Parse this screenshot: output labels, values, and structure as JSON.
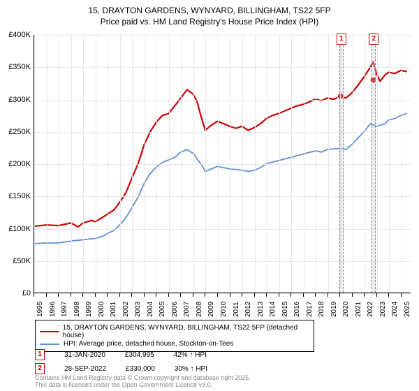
{
  "title": {
    "line1": "15, DRAYTON GARDENS, WYNYARD, BILLINGHAM, TS22 5FP",
    "line2": "Price paid vs. HM Land Registry's House Price Index (HPI)"
  },
  "chart": {
    "type": "line",
    "background_color": "#ffffff",
    "grid_color": "#e6e6e6",
    "axis_color": "#000000",
    "x_range": [
      1995,
      2025.8
    ],
    "y_range": [
      0,
      400000
    ],
    "y_ticks": [
      0,
      50000,
      100000,
      150000,
      200000,
      250000,
      300000,
      350000,
      400000
    ],
    "y_tick_labels": [
      "£0",
      "£50K",
      "£100K",
      "£150K",
      "£200K",
      "£250K",
      "£300K",
      "£350K",
      "£400K"
    ],
    "x_ticks": [
      1995,
      1996,
      1997,
      1998,
      1999,
      2000,
      2001,
      2002,
      2003,
      2004,
      2005,
      2006,
      2007,
      2008,
      2009,
      2010,
      2011,
      2012,
      2013,
      2014,
      2015,
      2016,
      2017,
      2018,
      2019,
      2020,
      2021,
      2022,
      2023,
      2024,
      2025
    ],
    "series": [
      {
        "id": "property",
        "label": "15, DRAYTON GARDENS, WYNYARD, BILLINGHAM, TS22 5FP (detached house)",
        "color": "#cc0000",
        "line_width": 2.2,
        "data": [
          [
            1995,
            103000
          ],
          [
            1996,
            105000
          ],
          [
            1997,
            104000
          ],
          [
            1998,
            108000
          ],
          [
            1998.6,
            102000
          ],
          [
            1999,
            108000
          ],
          [
            1999.7,
            112000
          ],
          [
            2000,
            110000
          ],
          [
            2000.7,
            118000
          ],
          [
            2001,
            122000
          ],
          [
            2001.5,
            128000
          ],
          [
            2002,
            140000
          ],
          [
            2002.5,
            155000
          ],
          [
            2003,
            178000
          ],
          [
            2003.5,
            200000
          ],
          [
            2004,
            230000
          ],
          [
            2004.5,
            250000
          ],
          [
            2005,
            265000
          ],
          [
            2005.5,
            275000
          ],
          [
            2006,
            278000
          ],
          [
            2006.5,
            290000
          ],
          [
            2007,
            302000
          ],
          [
            2007.5,
            315000
          ],
          [
            2008,
            308000
          ],
          [
            2008.3,
            298000
          ],
          [
            2008.7,
            270000
          ],
          [
            2009,
            252000
          ],
          [
            2009.5,
            260000
          ],
          [
            2010,
            266000
          ],
          [
            2010.5,
            262000
          ],
          [
            2011,
            258000
          ],
          [
            2011.5,
            255000
          ],
          [
            2012,
            258000
          ],
          [
            2012.5,
            252000
          ],
          [
            2013,
            256000
          ],
          [
            2013.5,
            262000
          ],
          [
            2014,
            270000
          ],
          [
            2014.5,
            275000
          ],
          [
            2015,
            278000
          ],
          [
            2015.5,
            282000
          ],
          [
            2016,
            286000
          ],
          [
            2016.5,
            290000
          ],
          [
            2017,
            292000
          ],
          [
            2017.5,
            296000
          ],
          [
            2018,
            300000
          ],
          [
            2018.5,
            298000
          ],
          [
            2019,
            302000
          ],
          [
            2019.5,
            300000
          ],
          [
            2020,
            304000
          ],
          [
            2020.5,
            302000
          ],
          [
            2021,
            310000
          ],
          [
            2021.5,
            322000
          ],
          [
            2022,
            335000
          ],
          [
            2022.5,
            350000
          ],
          [
            2022.75,
            358000
          ],
          [
            2023,
            340000
          ],
          [
            2023.3,
            328000
          ],
          [
            2023.7,
            338000
          ],
          [
            2024,
            342000
          ],
          [
            2024.5,
            340000
          ],
          [
            2025,
            345000
          ],
          [
            2025.5,
            343000
          ]
        ]
      },
      {
        "id": "hpi",
        "label": "HPI: Average price, detached house, Stockton-on-Tees",
        "color": "#5b8fd6",
        "line_width": 1.8,
        "data": [
          [
            1995,
            76000
          ],
          [
            1996,
            77000
          ],
          [
            1997,
            77000
          ],
          [
            1998,
            80000
          ],
          [
            1999,
            82000
          ],
          [
            2000,
            84000
          ],
          [
            2000.7,
            88000
          ],
          [
            2001,
            92000
          ],
          [
            2001.5,
            96000
          ],
          [
            2002,
            105000
          ],
          [
            2002.5,
            116000
          ],
          [
            2003,
            132000
          ],
          [
            2003.5,
            148000
          ],
          [
            2004,
            170000
          ],
          [
            2004.5,
            185000
          ],
          [
            2005,
            195000
          ],
          [
            2005.5,
            202000
          ],
          [
            2006,
            206000
          ],
          [
            2006.5,
            210000
          ],
          [
            2007,
            218000
          ],
          [
            2007.5,
            222000
          ],
          [
            2008,
            216000
          ],
          [
            2008.7,
            198000
          ],
          [
            2009,
            188000
          ],
          [
            2009.5,
            192000
          ],
          [
            2010,
            196000
          ],
          [
            2010.5,
            194000
          ],
          [
            2011,
            192000
          ],
          [
            2012,
            190000
          ],
          [
            2012.5,
            188000
          ],
          [
            2013,
            190000
          ],
          [
            2013.5,
            194000
          ],
          [
            2014,
            200000
          ],
          [
            2015,
            205000
          ],
          [
            2016,
            210000
          ],
          [
            2017,
            215000
          ],
          [
            2018,
            220000
          ],
          [
            2018.5,
            218000
          ],
          [
            2019,
            222000
          ],
          [
            2020,
            224000
          ],
          [
            2020.5,
            222000
          ],
          [
            2021,
            230000
          ],
          [
            2021.5,
            240000
          ],
          [
            2022,
            250000
          ],
          [
            2022.5,
            262000
          ],
          [
            2023,
            258000
          ],
          [
            2023.7,
            262000
          ],
          [
            2024,
            268000
          ],
          [
            2024.5,
            270000
          ],
          [
            2025,
            275000
          ],
          [
            2025.5,
            278000
          ]
        ]
      }
    ],
    "markers": [
      {
        "ref": "1",
        "x": 2020.08,
        "band_width_years": 0.35
      },
      {
        "ref": "2",
        "x": 2022.74,
        "band_width_years": 0.35
      }
    ],
    "sale_points": [
      {
        "x": 2020.08,
        "y": 304995
      },
      {
        "x": 2022.74,
        "y": 330000
      }
    ]
  },
  "legend": {
    "items": [
      {
        "label": "15, DRAYTON GARDENS, WYNYARD, BILLINGHAM, TS22 5FP (detached house)",
        "color": "#cc0000"
      },
      {
        "label": "HPI: Average price, detached house, Stockton-on-Tees",
        "color": "#5b8fd6"
      }
    ]
  },
  "marker_info": [
    {
      "ref": "1",
      "date": "31-JAN-2020",
      "price": "£304,995",
      "vs_hpi": "42% ↑ HPI"
    },
    {
      "ref": "2",
      "date": "28-SEP-2022",
      "price": "£330,000",
      "vs_hpi": "30% ↑ HPI"
    }
  ],
  "footer": "Contains HM Land Registry data © Crown copyright and database right 2025.\nThis data is licensed under the Open Government Licence v3.0."
}
